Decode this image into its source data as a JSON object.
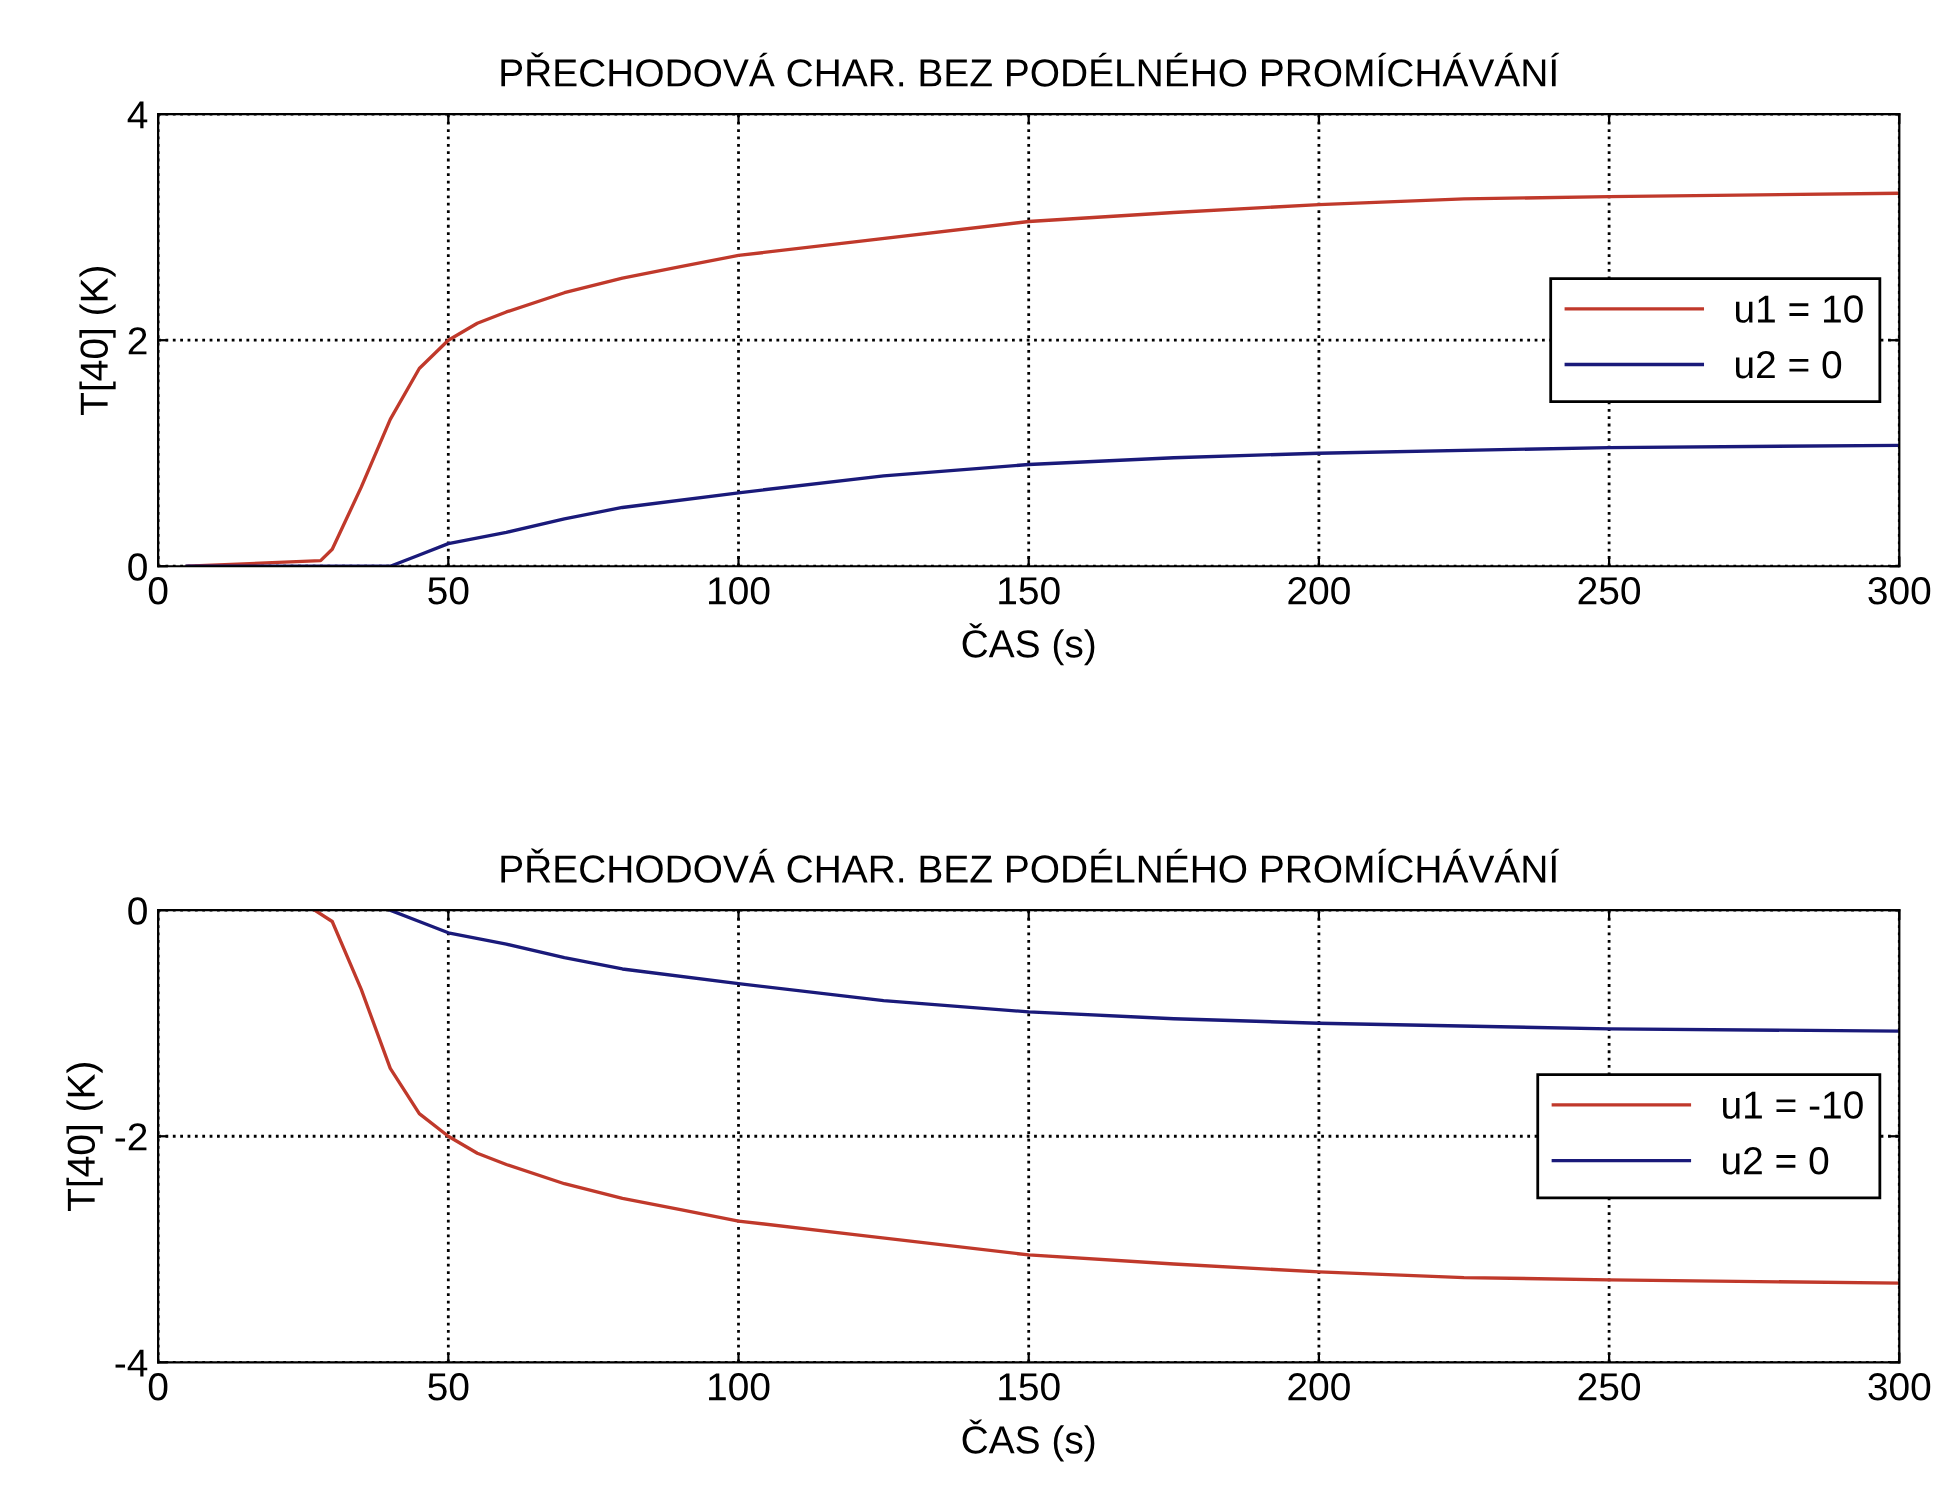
{
  "chart_data": [
    {
      "type": "line",
      "title": "PŘECHODOVÁ CHAR. BEZ PODÉLNÉHO PROMÍCHÁVÁNÍ",
      "xlabel": "ČAS (s)",
      "ylabel": "T[40] (K)",
      "xlim": [
        0,
        300
      ],
      "ylim": [
        0,
        4
      ],
      "xticks": [
        0,
        50,
        100,
        150,
        200,
        250,
        300
      ],
      "yticks": [
        0,
        2,
        4
      ],
      "grid": true,
      "legend": "right",
      "line_style": "solid",
      "marker": "none",
      "series": [
        {
          "name": "u1 = 10",
          "color": "#c0392b",
          "x": [
            5,
            28,
            30,
            35,
            40,
            45,
            50,
            55,
            60,
            70,
            80,
            90,
            100,
            120,
            150,
            175,
            200,
            225,
            250,
            300
          ],
          "values": [
            0,
            0.05,
            0.15,
            0.7,
            1.3,
            1.75,
            2.0,
            2.15,
            2.25,
            2.42,
            2.55,
            2.65,
            2.75,
            2.87,
            3.05,
            3.13,
            3.2,
            3.25,
            3.27,
            3.3
          ]
        },
        {
          "name": "u2 = 0",
          "color": "#1a1a7a",
          "x": [
            5,
            40,
            45,
            50,
            60,
            70,
            80,
            100,
            125,
            150,
            175,
            200,
            250,
            300
          ],
          "values": [
            0,
            0,
            0.1,
            0.2,
            0.3,
            0.42,
            0.52,
            0.65,
            0.8,
            0.9,
            0.96,
            1.0,
            1.05,
            1.07
          ]
        }
      ]
    },
    {
      "type": "line",
      "title": "PŘECHODOVÁ CHAR. BEZ PODÉLNÉHO PROMÍCHÁVÁNÍ",
      "xlabel": "ČAS (s)",
      "ylabel": "T[40] (K)",
      "xlim": [
        0,
        300
      ],
      "ylim": [
        -4,
        0
      ],
      "xticks": [
        0,
        50,
        100,
        150,
        200,
        250,
        300
      ],
      "yticks": [
        -4,
        -2,
        0
      ],
      "grid": true,
      "legend": "right",
      "line_style": "solid",
      "marker": "none",
      "series": [
        {
          "name": "u1 = -10",
          "color": "#c0392b",
          "x": [
            27,
            30,
            35,
            40,
            45,
            50,
            55,
            60,
            70,
            80,
            90,
            100,
            120,
            150,
            175,
            200,
            225,
            250,
            300
          ],
          "values": [
            0,
            -0.1,
            -0.7,
            -1.4,
            -1.8,
            -2.0,
            -2.15,
            -2.25,
            -2.42,
            -2.55,
            -2.65,
            -2.75,
            -2.87,
            -3.05,
            -3.13,
            -3.2,
            -3.25,
            -3.27,
            -3.3
          ]
        },
        {
          "name": "u2 = 0",
          "color": "#1a1a7a",
          "x": [
            40,
            45,
            50,
            60,
            70,
            80,
            100,
            125,
            150,
            175,
            200,
            250,
            300
          ],
          "values": [
            0,
            -0.1,
            -0.2,
            -0.3,
            -0.42,
            -0.52,
            -0.65,
            -0.8,
            -0.9,
            -0.96,
            -1.0,
            -1.05,
            -1.07
          ]
        }
      ]
    }
  ]
}
